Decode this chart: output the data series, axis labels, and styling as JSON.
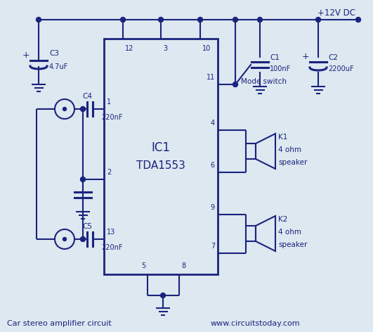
{
  "bg_color": "#dde8f0",
  "line_color": "#1a237e",
  "text_color": "#1a237e",
  "title_left": "Car stereo amplifier circuit",
  "title_right": "www.circuitstoday.com",
  "vcc_label": "+12V DC",
  "ic_label1": "IC1",
  "ic_label2": "TDA1553"
}
